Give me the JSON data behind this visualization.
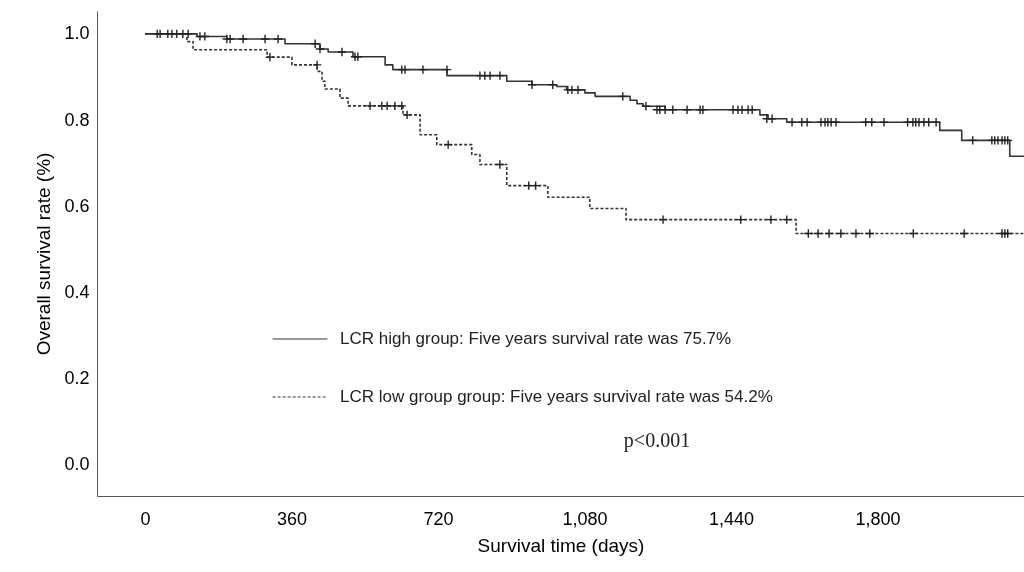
{
  "chart_data": {
    "type": "step",
    "xlabel": "Survival time (days)",
    "ylabel": "Overall survival rate (%)",
    "xlim": [
      -118,
      2160
    ],
    "ylim": [
      -0.072,
      1.053
    ],
    "xticks": [
      0,
      360,
      720,
      {
        "value": 1080,
        "label": "1,080"
      },
      {
        "value": 1440,
        "label": "1,440"
      },
      {
        "value": 1800,
        "label": "1,800"
      }
    ],
    "yticks": [
      {
        "value": 0,
        "label": "0.0"
      },
      0.2,
      0.4,
      0.6,
      0.8,
      {
        "value": 1,
        "label": "1.0"
      }
    ],
    "grid": false,
    "legend": "bottom",
    "annotations": [
      "p<0.001"
    ],
    "series": [
      {
        "name": "LCR high  group: Five years survival rate was 75.7%",
        "type": "step",
        "line_style": "solid",
        "color": "#333333",
        "x": [
          0,
          128,
          201,
          344,
          430,
          450,
          511,
          590,
          609,
          742,
          889,
          951,
          1012,
          1036,
          1081,
          1106,
          1192,
          1209,
          1224,
          1278,
          1511,
          1531,
          1577,
          1953,
          2007,
          2125,
          2160
        ],
        "values": [
          1.0,
          0.994,
          0.988,
          0.977,
          0.965,
          0.958,
          0.947,
          0.928,
          0.917,
          0.903,
          0.89,
          0.882,
          0.878,
          0.87,
          0.863,
          0.855,
          0.846,
          0.838,
          0.832,
          0.824,
          0.812,
          0.803,
          0.795,
          0.776,
          0.753,
          0.716,
          0.716
        ]
      },
      {
        "name": "LCR low group group: Five years survival rate was 54.2%",
        "type": "step",
        "line_style": "dashed",
        "color": "#333333",
        "x": [
          0,
          103,
          118,
          300,
          361,
          423,
          435,
          442,
          479,
          499,
          634,
          676,
          717,
          803,
          823,
          889,
          990,
          1093,
          1182,
          1600,
          2160
        ],
        "values": [
          1.0,
          0.982,
          0.963,
          0.946,
          0.928,
          0.913,
          0.89,
          0.872,
          0.851,
          0.833,
          0.812,
          0.766,
          0.743,
          0.72,
          0.697,
          0.648,
          0.621,
          0.595,
          0.569,
          0.537,
          0.537
        ]
      },
      {
        "type": "scatter",
        "marker": "cross",
        "color": "#222222",
        "x": [
          30,
          37,
          56,
          66,
          78,
          93,
          106,
          135,
          147,
          201,
          209,
          241,
          295,
          327,
          418,
          430,
          484,
          516,
          523,
          631,
          639,
          683,
          742,
          823,
          835,
          848,
          872,
          951,
          1002,
          1039,
          1049,
          1064,
          1174,
          1231,
          1258,
          1265,
          1278,
          1297,
          1332,
          1364,
          1371,
          1445,
          1457,
          1467,
          1482,
          1492,
          1528,
          1541,
          1590,
          1614,
          1627,
          1661,
          1671,
          1678,
          1686,
          1698,
          1771,
          1786,
          1816,
          1874,
          1887,
          1894,
          1902,
          1914,
          1926,
          1944,
          2034,
          2081,
          2088,
          2096,
          2106,
          2113,
          2120
        ],
        "values": [
          1.0,
          1.0,
          1.0,
          1.0,
          1.0,
          1.0,
          1.0,
          0.994,
          0.994,
          0.988,
          0.988,
          0.988,
          0.988,
          0.988,
          0.977,
          0.965,
          0.958,
          0.947,
          0.947,
          0.917,
          0.917,
          0.917,
          0.917,
          0.903,
          0.903,
          0.903,
          0.903,
          0.882,
          0.882,
          0.87,
          0.87,
          0.87,
          0.855,
          0.832,
          0.824,
          0.824,
          0.824,
          0.824,
          0.824,
          0.824,
          0.824,
          0.824,
          0.824,
          0.824,
          0.824,
          0.824,
          0.803,
          0.803,
          0.795,
          0.795,
          0.795,
          0.795,
          0.795,
          0.795,
          0.795,
          0.795,
          0.795,
          0.795,
          0.795,
          0.795,
          0.795,
          0.795,
          0.795,
          0.795,
          0.795,
          0.795,
          0.753,
          0.753,
          0.753,
          0.753,
          0.753,
          0.753,
          0.753
        ]
      },
      {
        "type": "scatter",
        "marker": "cross",
        "color": "#222222",
        "x": [
          307,
          423,
          553,
          582,
          595,
          614,
          631,
          644,
          745,
          872,
          943,
          960,
          1273,
          1464,
          1538,
          1577,
          1630,
          1654,
          1681,
          1710,
          1747,
          1781,
          1888,
          2013,
          2106,
          2113,
          2120
        ],
        "values": [
          0.946,
          0.928,
          0.833,
          0.833,
          0.833,
          0.833,
          0.833,
          0.812,
          0.743,
          0.697,
          0.648,
          0.648,
          0.569,
          0.569,
          0.569,
          0.569,
          0.537,
          0.537,
          0.537,
          0.537,
          0.537,
          0.537,
          0.537,
          0.537,
          0.537,
          0.537,
          0.537
        ]
      }
    ]
  }
}
